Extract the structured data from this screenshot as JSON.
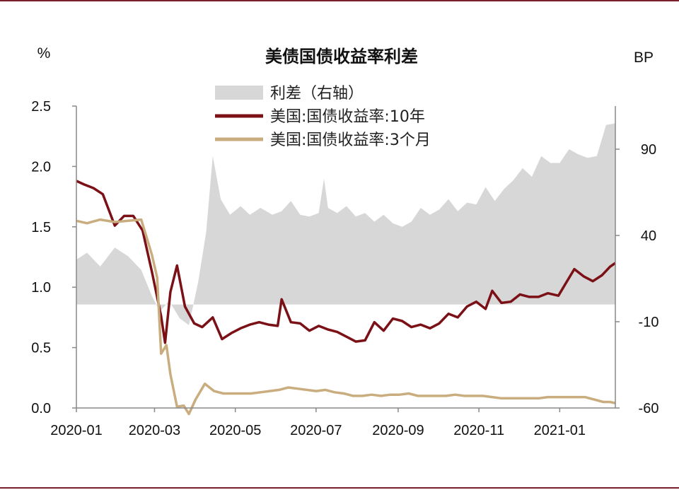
{
  "colors": {
    "border": "#7a1f2b",
    "spread_fill": "#d7d7d7",
    "ten_year": "#7b1016",
    "three_month": "#c9ad7e",
    "axis": "#888888"
  },
  "chart_data": {
    "type": "line",
    "title": "美债国债收益率利差",
    "left_unit": "%",
    "right_unit": "BP",
    "x_ticks": [
      "2020-01",
      "2020-03",
      "2020-05",
      "2020-07",
      "2020-09",
      "2020-11",
      "2021-01"
    ],
    "x_tick_values": [
      "2020-01-02",
      "2020-03-01",
      "2020-05-01",
      "2020-07-01",
      "2020-09-01",
      "2020-11-01",
      "2021-01-01"
    ],
    "x_range": [
      "2020-01-02",
      "2021-02-12"
    ],
    "y_left_ticks": [
      "0.0",
      "0.5",
      "1.0",
      "1.5",
      "2.0",
      "2.5"
    ],
    "y_left_range": [
      0,
      2.5
    ],
    "y_right_ticks": [
      "-60",
      "-10",
      "40",
      "90"
    ],
    "y_right_range": [
      -60,
      115
    ],
    "legend_placement": "top-center",
    "grid": false,
    "series": [
      {
        "name": "利差（右轴）",
        "kind": "area",
        "axis": "right",
        "points": [
          [
            "2020-01-02",
            26
          ],
          [
            "2020-01-10",
            30
          ],
          [
            "2020-01-20",
            22
          ],
          [
            "2020-01-31",
            33
          ],
          [
            "2020-02-10",
            28
          ],
          [
            "2020-02-20",
            20
          ],
          [
            "2020-02-28",
            5
          ],
          [
            "2020-03-05",
            -4
          ],
          [
            "2020-03-12",
            2
          ],
          [
            "2020-03-20",
            -8
          ],
          [
            "2020-03-27",
            -12
          ],
          [
            "2020-04-03",
            13
          ],
          [
            "2020-04-09",
            42
          ],
          [
            "2020-04-14",
            86
          ],
          [
            "2020-04-20",
            61
          ],
          [
            "2020-04-27",
            52
          ],
          [
            "2020-05-05",
            57
          ],
          [
            "2020-05-12",
            52
          ],
          [
            "2020-05-20",
            56
          ],
          [
            "2020-05-29",
            52
          ],
          [
            "2020-06-05",
            54
          ],
          [
            "2020-06-12",
            60
          ],
          [
            "2020-06-19",
            52
          ],
          [
            "2020-06-26",
            51
          ],
          [
            "2020-07-03",
            53
          ],
          [
            "2020-07-07",
            73
          ],
          [
            "2020-07-10",
            56
          ],
          [
            "2020-07-17",
            53
          ],
          [
            "2020-07-24",
            57
          ],
          [
            "2020-07-31",
            51
          ],
          [
            "2020-08-07",
            53
          ],
          [
            "2020-08-14",
            48
          ],
          [
            "2020-08-21",
            52
          ],
          [
            "2020-08-28",
            47
          ],
          [
            "2020-09-04",
            45
          ],
          [
            "2020-09-11",
            48
          ],
          [
            "2020-09-18",
            56
          ],
          [
            "2020-09-25",
            52
          ],
          [
            "2020-10-02",
            55
          ],
          [
            "2020-10-09",
            61
          ],
          [
            "2020-10-16",
            54
          ],
          [
            "2020-10-23",
            59
          ],
          [
            "2020-10-30",
            58
          ],
          [
            "2020-11-06",
            68
          ],
          [
            "2020-11-13",
            60
          ],
          [
            "2020-11-20",
            67
          ],
          [
            "2020-11-27",
            72
          ],
          [
            "2020-12-04",
            79
          ],
          [
            "2020-12-11",
            74
          ],
          [
            "2020-12-18",
            86
          ],
          [
            "2020-12-25",
            82
          ],
          [
            "2021-01-01",
            82
          ],
          [
            "2021-01-08",
            90
          ],
          [
            "2021-01-15",
            87
          ],
          [
            "2021-01-22",
            85
          ],
          [
            "2021-01-29",
            86
          ],
          [
            "2021-02-05",
            104
          ],
          [
            "2021-02-12",
            105
          ]
        ]
      },
      {
        "name": "美国:国债收益率:10年",
        "kind": "line",
        "axis": "left",
        "points": [
          [
            "2020-01-02",
            1.88
          ],
          [
            "2020-01-08",
            1.85
          ],
          [
            "2020-01-15",
            1.82
          ],
          [
            "2020-01-22",
            1.77
          ],
          [
            "2020-01-31",
            1.51
          ],
          [
            "2020-02-07",
            1.59
          ],
          [
            "2020-02-14",
            1.59
          ],
          [
            "2020-02-21",
            1.47
          ],
          [
            "2020-02-28",
            1.13
          ],
          [
            "2020-03-06",
            0.76
          ],
          [
            "2020-03-09",
            0.54
          ],
          [
            "2020-03-13",
            0.96
          ],
          [
            "2020-03-18",
            1.18
          ],
          [
            "2020-03-24",
            0.84
          ],
          [
            "2020-03-31",
            0.7
          ],
          [
            "2020-04-06",
            0.67
          ],
          [
            "2020-04-14",
            0.75
          ],
          [
            "2020-04-21",
            0.57
          ],
          [
            "2020-04-28",
            0.62
          ],
          [
            "2020-05-05",
            0.66
          ],
          [
            "2020-05-12",
            0.69
          ],
          [
            "2020-05-19",
            0.71
          ],
          [
            "2020-05-26",
            0.69
          ],
          [
            "2020-06-02",
            0.68
          ],
          [
            "2020-06-05",
            0.9
          ],
          [
            "2020-06-12",
            0.71
          ],
          [
            "2020-06-19",
            0.7
          ],
          [
            "2020-06-26",
            0.64
          ],
          [
            "2020-07-03",
            0.68
          ],
          [
            "2020-07-10",
            0.65
          ],
          [
            "2020-07-17",
            0.63
          ],
          [
            "2020-07-24",
            0.59
          ],
          [
            "2020-07-31",
            0.55
          ],
          [
            "2020-08-07",
            0.56
          ],
          [
            "2020-08-14",
            0.71
          ],
          [
            "2020-08-21",
            0.64
          ],
          [
            "2020-08-28",
            0.74
          ],
          [
            "2020-09-04",
            0.72
          ],
          [
            "2020-09-11",
            0.67
          ],
          [
            "2020-09-18",
            0.69
          ],
          [
            "2020-09-25",
            0.66
          ],
          [
            "2020-10-02",
            0.7
          ],
          [
            "2020-10-09",
            0.78
          ],
          [
            "2020-10-16",
            0.75
          ],
          [
            "2020-10-23",
            0.84
          ],
          [
            "2020-10-30",
            0.88
          ],
          [
            "2020-11-06",
            0.82
          ],
          [
            "2020-11-11",
            0.97
          ],
          [
            "2020-11-18",
            0.87
          ],
          [
            "2020-11-25",
            0.88
          ],
          [
            "2020-12-02",
            0.94
          ],
          [
            "2020-12-09",
            0.92
          ],
          [
            "2020-12-16",
            0.92
          ],
          [
            "2020-12-23",
            0.95
          ],
          [
            "2020-12-31",
            0.93
          ],
          [
            "2021-01-06",
            1.04
          ],
          [
            "2021-01-12",
            1.15
          ],
          [
            "2021-01-19",
            1.09
          ],
          [
            "2021-01-26",
            1.05
          ],
          [
            "2021-02-02",
            1.1
          ],
          [
            "2021-02-08",
            1.17
          ],
          [
            "2021-02-12",
            1.2
          ]
        ]
      },
      {
        "name": "美国:国债收益率:3个月",
        "kind": "line",
        "axis": "left",
        "points": [
          [
            "2020-01-02",
            1.55
          ],
          [
            "2020-01-10",
            1.53
          ],
          [
            "2020-01-20",
            1.56
          ],
          [
            "2020-01-31",
            1.54
          ],
          [
            "2020-02-10",
            1.55
          ],
          [
            "2020-02-20",
            1.56
          ],
          [
            "2020-02-28",
            1.27
          ],
          [
            "2020-03-03",
            1.08
          ],
          [
            "2020-03-06",
            0.45
          ],
          [
            "2020-03-10",
            0.52
          ],
          [
            "2020-03-13",
            0.28
          ],
          [
            "2020-03-18",
            0.01
          ],
          [
            "2020-03-23",
            0.02
          ],
          [
            "2020-03-27",
            -0.05
          ],
          [
            "2020-04-01",
            0.07
          ],
          [
            "2020-04-08",
            0.2
          ],
          [
            "2020-04-15",
            0.14
          ],
          [
            "2020-04-22",
            0.12
          ],
          [
            "2020-04-29",
            0.12
          ],
          [
            "2020-05-06",
            0.12
          ],
          [
            "2020-05-13",
            0.12
          ],
          [
            "2020-05-20",
            0.13
          ],
          [
            "2020-05-27",
            0.14
          ],
          [
            "2020-06-03",
            0.15
          ],
          [
            "2020-06-10",
            0.17
          ],
          [
            "2020-06-17",
            0.16
          ],
          [
            "2020-06-24",
            0.15
          ],
          [
            "2020-07-01",
            0.14
          ],
          [
            "2020-07-08",
            0.15
          ],
          [
            "2020-07-15",
            0.13
          ],
          [
            "2020-07-22",
            0.12
          ],
          [
            "2020-07-29",
            0.1
          ],
          [
            "2020-08-05",
            0.1
          ],
          [
            "2020-08-12",
            0.11
          ],
          [
            "2020-08-19",
            0.1
          ],
          [
            "2020-08-26",
            0.11
          ],
          [
            "2020-09-02",
            0.11
          ],
          [
            "2020-09-09",
            0.12
          ],
          [
            "2020-09-16",
            0.1
          ],
          [
            "2020-09-23",
            0.1
          ],
          [
            "2020-09-30",
            0.1
          ],
          [
            "2020-10-07",
            0.1
          ],
          [
            "2020-10-14",
            0.11
          ],
          [
            "2020-10-21",
            0.1
          ],
          [
            "2020-10-28",
            0.1
          ],
          [
            "2020-11-04",
            0.1
          ],
          [
            "2020-11-11",
            0.09
          ],
          [
            "2020-11-18",
            0.08
          ],
          [
            "2020-11-25",
            0.08
          ],
          [
            "2020-12-02",
            0.08
          ],
          [
            "2020-12-09",
            0.08
          ],
          [
            "2020-12-16",
            0.08
          ],
          [
            "2020-12-23",
            0.09
          ],
          [
            "2020-12-31",
            0.09
          ],
          [
            "2021-01-06",
            0.09
          ],
          [
            "2021-01-13",
            0.09
          ],
          [
            "2021-01-20",
            0.09
          ],
          [
            "2021-01-27",
            0.07
          ],
          [
            "2021-02-03",
            0.05
          ],
          [
            "2021-02-08",
            0.05
          ],
          [
            "2021-02-12",
            0.04
          ]
        ]
      }
    ]
  }
}
